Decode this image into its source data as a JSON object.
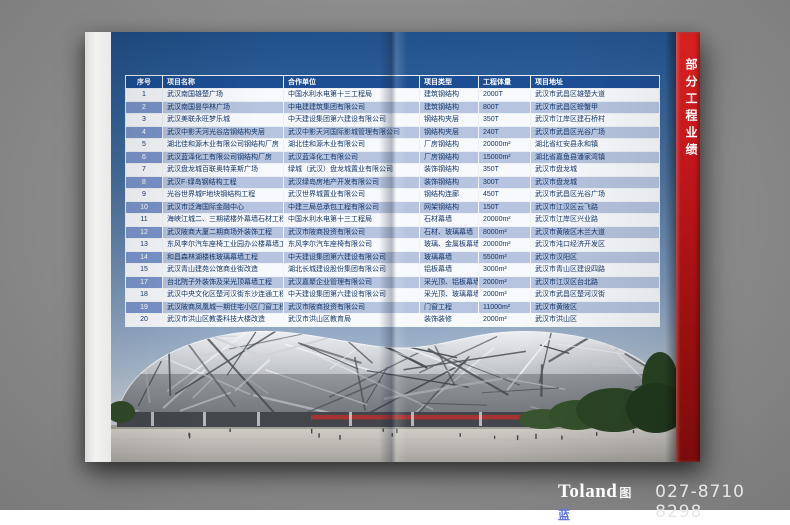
{
  "sidebar": {
    "title": "部分工程业绩"
  },
  "footer": {
    "brand": "Toland",
    "brand_cjk_1": "图",
    "brand_cjk_2": "蓝",
    "phone": "027-8710 8298"
  },
  "photo": {
    "subject": "bird-nest-stadium"
  },
  "colors": {
    "banner_red": "#c3161c",
    "header_blue": "#1d4e94",
    "alt_row_blue": "#b6c4df",
    "alt_row_num_blue": "#7b95cb",
    "text_navy": "#16386b",
    "sky_top": "#1f4f88"
  },
  "table": {
    "columns": [
      "序号",
      "项目名称",
      "合作单位",
      "项目类型",
      "工程体量",
      "项目地址"
    ],
    "rows": [
      {
        "no": "1",
        "name": "武汉南国雄楚广场",
        "partner": "中国水利水电第十三工程局",
        "type": "建筑钢结构",
        "volume": "2000T",
        "address": "武汉市武昌区雄楚大道"
      },
      {
        "no": "2",
        "name": "武汉南国昙华林广场",
        "partner": "中电建建筑集团有限公司",
        "type": "建筑钢结构",
        "volume": "800T",
        "address": "武汉市武昌区螃蟹甲"
      },
      {
        "no": "3",
        "name": "武汉美联永旺梦乐城",
        "partner": "中天建设集团第六建设有限公司",
        "type": "钢结构夹层",
        "volume": "350T",
        "address": "武汉市江岸区建石桥村"
      },
      {
        "no": "4",
        "name": "武汉中影天河光谷店钢结构夹层",
        "partner": "武汉中影天河国际影城管理有限公司",
        "type": "钢结构夹层",
        "volume": "240T",
        "address": "武汉市武昌区光谷广场"
      },
      {
        "no": "5",
        "name": "湖北佳和源木业有限公司钢结构厂房",
        "partner": "湖北佳和源木业有限公司",
        "type": "厂房钢结构",
        "volume": "20000m²",
        "address": "湖北省红安县永和镇"
      },
      {
        "no": "6",
        "name": "武汉蓝泽化工有限公司钢结构厂房",
        "partner": "武汉蓝泽化工有限公司",
        "type": "厂房钢结构",
        "volume": "15000m²",
        "address": "湖北省嘉鱼县潘家湾镇"
      },
      {
        "no": "7",
        "name": "武汉盘龙城百联奥特莱斯广场",
        "partner": "绿城（武汉）盘龙城置业有限公司",
        "type": "装饰钢结构",
        "volume": "350T",
        "address": "武汉市盘龙城"
      },
      {
        "no": "8",
        "name": "武汉F·绿岛钢结构工程",
        "partner": "武汉绿岛房地产开发有限公司",
        "type": "装饰钢结构",
        "volume": "300T",
        "address": "武汉市盘龙城"
      },
      {
        "no": "9",
        "name": "光谷世界城F地块钢结构工程",
        "partner": "武汉世界城置业有限公司",
        "type": "钢结构连廊",
        "volume": "450T",
        "address": "武汉市武昌区光谷广场"
      },
      {
        "no": "10",
        "name": "武汉市泛海国际金融中心",
        "partner": "中建三局总承包工程有限公司",
        "type": "网架钢结构",
        "volume": "150T",
        "address": "武汉市江汉区云飞路"
      },
      {
        "no": "11",
        "name": "海峡江城二、三期裙楼外幕墙石材工程",
        "partner": "中国水利水电第十三工程局",
        "type": "石材幕墙",
        "volume": "20000m²",
        "address": "武汉市江岸区兴业路"
      },
      {
        "no": "12",
        "name": "武汉陂商大厦二期商场外装饰工程",
        "partner": "武汉市陂商投资有限公司",
        "type": "石材、玻璃幕墙",
        "volume": "8000m²",
        "address": "武汉市黄陂区木兰大道"
      },
      {
        "no": "13",
        "name": "东风李尔汽车座椅工业园办公楼幕墙工程",
        "partner": "东风李尔汽车座椅有限公司",
        "type": "玻璃、金属板幕墙",
        "volume": "20000m²",
        "address": "武汉市沌口经济开发区"
      },
      {
        "no": "14",
        "name": "和昌森林湖楼栋玻璃幕墙工程",
        "partner": "中天建设集团第六建设有限公司",
        "type": "玻璃幕墙",
        "volume": "5500m²",
        "address": "武汉市汉阳区"
      },
      {
        "no": "15",
        "name": "武汉青山建苑公馆商业街改造",
        "partner": "湖北长城建设股份集团有限公司",
        "type": "铝板幕墙",
        "volume": "3000m²",
        "address": "武汉市青山区建设四路"
      },
      {
        "no": "17",
        "name": "台北院子外装饰及采光顶幕墙工程",
        "partner": "武汉嘉聚企业管理有限公司",
        "type": "采光顶、铝板幕墙",
        "volume": "2000m²",
        "address": "武汉市江汉区台北路"
      },
      {
        "no": "18",
        "name": "武汉中央文化区楚河汉街东沙连通工程",
        "partner": "中天建设集团第六建设有限公司",
        "type": "采光顶、玻璃幕墙",
        "volume": "2000m²",
        "address": "武汉市武昌区楚河汉街"
      },
      {
        "no": "19",
        "name": "武汉陂商凤凰城一期住宅小区门窗工程",
        "partner": "武汉市陂商投资有限公司",
        "type": "门窗工程",
        "volume": "11000m²",
        "address": "武汉市黄陂区"
      },
      {
        "no": "20",
        "name": "武汉市洪山区教委科技大楼改造",
        "partner": "武汉市洪山区教育局",
        "type": "装饰装修",
        "volume": "2000m²",
        "address": "武汉市洪山区"
      }
    ]
  }
}
